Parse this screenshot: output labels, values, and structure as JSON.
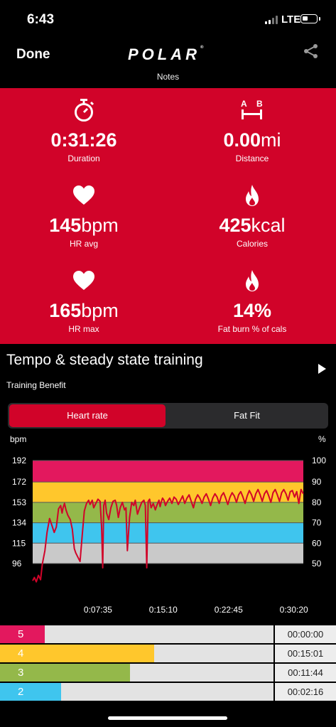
{
  "status_bar": {
    "time": "6:43",
    "network": "LTE"
  },
  "header": {
    "done_label": "Done",
    "logo_text": "POLAR",
    "logo_mark": "®",
    "notes_label": "Notes"
  },
  "stats": [
    {
      "icon": "stopwatch-icon",
      "value": "0:31:26",
      "unit": "",
      "label": "Duration"
    },
    {
      "icon": "distance-ab-icon",
      "value": "0.00",
      "unit": "mi",
      "label": "Distance"
    },
    {
      "icon": "heart-icon",
      "value": "145",
      "unit": "bpm",
      "label": "HR avg"
    },
    {
      "icon": "flame-icon",
      "value": "425",
      "unit": "kcal",
      "label": "Calories"
    },
    {
      "icon": "heart-icon",
      "value": "165",
      "unit": "bpm",
      "label": "HR max"
    },
    {
      "icon": "flame-icon",
      "value": "14",
      "unit": "%",
      "label": "Fat burn % of cals"
    }
  ],
  "benefit": {
    "title": "Tempo & steady state training",
    "subtitle": "Training Benefit"
  },
  "tabs": {
    "heart_rate": "Heart rate",
    "fat_fit": "Fat Fit"
  },
  "colors": {
    "brand_red": "#d10329",
    "zone5": "#e3185e",
    "zone4": "#ffc72c",
    "zone3": "#94b84a",
    "zone2": "#3fc5ee",
    "zone1": "#c9c9c9"
  },
  "chart_data": {
    "type": "line",
    "left_axis_label": "bpm",
    "right_axis_label": "%",
    "left_ticks": [
      "192",
      "172",
      "153",
      "134",
      "115",
      "96"
    ],
    "right_ticks": [
      "100",
      "90",
      "80",
      "70",
      "60",
      "50"
    ],
    "x_ticks": [
      "0:07:35",
      "0:15:10",
      "0:22:45",
      "0:30:20"
    ],
    "x_tick_seconds": [
      455,
      910,
      1365,
      1820
    ],
    "xlim_seconds": [
      0,
      1886
    ],
    "ylim_bpm": [
      96,
      192
    ],
    "zones_bpm": [
      {
        "zone": 1,
        "from": 96,
        "to": 115,
        "color": "#c9c9c9"
      },
      {
        "zone": 2,
        "from": 115,
        "to": 134,
        "color": "#3fc5ee"
      },
      {
        "zone": 3,
        "from": 134,
        "to": 153,
        "color": "#94b84a"
      },
      {
        "zone": 4,
        "from": 153,
        "to": 172,
        "color": "#ffc72c"
      },
      {
        "zone": 5,
        "from": 172,
        "to": 192,
        "color": "#e3185e"
      }
    ],
    "series": [
      {
        "color": "#d10329",
        "x": [
          0,
          12,
          25,
          40,
          55,
          68,
          85,
          100,
          118,
          130,
          150,
          165,
          180,
          195,
          205,
          212,
          222,
          232,
          245,
          262,
          276,
          290,
          300,
          315,
          330,
          345,
          360,
          375,
          390,
          400,
          415,
          425,
          440,
          455,
          470,
          480,
          488,
          495,
          505,
          515,
          530,
          545,
          560,
          575,
          585,
          597,
          610,
          625,
          640,
          650,
          660,
          675,
          690,
          705,
          715,
          730,
          745,
          760,
          775,
          785,
          795,
          805,
          815,
          825,
          840,
          855,
          865,
          880,
          888,
          895,
          905,
          915,
          925,
          940,
          955,
          970,
          985,
          1000,
          1015,
          1030,
          1045,
          1060,
          1075,
          1090,
          1105,
          1120,
          1135,
          1150,
          1165,
          1180,
          1195,
          1210,
          1225,
          1240,
          1255,
          1270,
          1285,
          1300,
          1315,
          1330,
          1345,
          1360,
          1375,
          1390,
          1405,
          1420,
          1435,
          1450,
          1465,
          1480,
          1495,
          1510,
          1525,
          1540,
          1555,
          1570,
          1585,
          1600,
          1615,
          1630,
          1645,
          1660,
          1675,
          1690,
          1705,
          1720,
          1735,
          1750,
          1765,
          1780,
          1795,
          1810,
          1825,
          1840,
          1855,
          1870,
          1886
        ],
        "y": [
          80,
          83,
          79,
          85,
          81,
          96,
          108,
          125,
          138,
          133,
          125,
          130,
          147,
          150,
          143,
          148,
          152,
          146,
          141,
          137,
          128,
          110,
          106,
          102,
          98,
          122,
          145,
          152,
          155,
          151,
          155,
          148,
          152,
          156,
          154,
          130,
          92,
          150,
          155,
          143,
          137,
          148,
          154,
          155,
          150,
          139,
          148,
          153,
          146,
          148,
          108,
          139,
          153,
          150,
          155,
          142,
          148,
          153,
          155,
          150,
          92,
          154,
          156,
          148,
          152,
          146,
          150,
          155,
          149,
          153,
          157,
          155,
          150,
          154,
          157,
          152,
          158,
          156,
          151,
          155,
          159,
          152,
          157,
          160,
          154,
          148,
          156,
          160,
          157,
          152,
          158,
          161,
          156,
          150,
          157,
          161,
          158,
          152,
          159,
          162,
          157,
          151,
          158,
          162,
          159,
          153,
          160,
          163,
          158,
          152,
          159,
          164,
          160,
          154,
          161,
          165,
          160,
          154,
          161,
          164,
          159,
          153,
          162,
          165,
          160,
          154,
          162,
          165,
          161,
          155,
          163,
          164,
          158,
          163,
          152,
          165,
          161
        ]
      }
    ]
  },
  "zone_rows": [
    {
      "zone": "5",
      "time": "00:00:00",
      "fraction": 0.0,
      "color": "#e3185e"
    },
    {
      "zone": "4",
      "time": "00:15:01",
      "fraction": 0.478,
      "color": "#ffc72c"
    },
    {
      "zone": "3",
      "time": "00:11:44",
      "fraction": 0.373,
      "color": "#94b84a"
    },
    {
      "zone": "2",
      "time": "00:02:16",
      "fraction": 0.072,
      "color": "#3fc5ee"
    }
  ]
}
